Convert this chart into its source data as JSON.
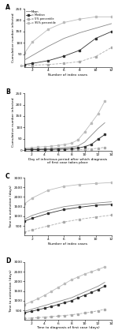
{
  "panel_A": {
    "xlabel": "Number of index cases",
    "ylabel": "Cumulative number infected",
    "xlim": [
      1,
      12
    ],
    "ylim": [
      -5,
      250
    ],
    "xticks": [
      2,
      4,
      6,
      8,
      10,
      12
    ],
    "yticks": [
      0,
      50,
      100,
      150,
      200,
      250
    ],
    "x": [
      1,
      2,
      4,
      6,
      8,
      10,
      12
    ],
    "mean": [
      25,
      45,
      85,
      120,
      145,
      165,
      185
    ],
    "median": [
      5,
      10,
      22,
      42,
      68,
      120,
      150
    ],
    "p5": [
      1,
      2,
      5,
      10,
      18,
      40,
      80
    ],
    "p95": [
      55,
      105,
      160,
      190,
      205,
      215,
      215
    ]
  },
  "panel_B": {
    "xlabel": "Day of infectious period after which diagnosis\nof first case takes place",
    "ylabel": "Cumulative number infected",
    "xlim": [
      1,
      14
    ],
    "ylim": [
      -5,
      250
    ],
    "xticks": [
      2,
      4,
      6,
      8,
      10,
      12,
      14
    ],
    "yticks": [
      0,
      50,
      100,
      150,
      200,
      250
    ],
    "x": [
      1,
      2,
      3,
      4,
      5,
      6,
      7,
      8,
      9,
      10,
      11,
      12,
      13
    ],
    "mean": [
      4,
      5,
      5,
      6,
      7,
      9,
      11,
      14,
      18,
      35,
      65,
      95,
      120
    ],
    "median": [
      2,
      2,
      2,
      3,
      3,
      4,
      5,
      7,
      9,
      15,
      25,
      48,
      68
    ],
    "p5": [
      1,
      1,
      1,
      1,
      1,
      1,
      2,
      2,
      2,
      3,
      5,
      8,
      12
    ],
    "p95": [
      8,
      10,
      13,
      15,
      17,
      20,
      25,
      30,
      45,
      80,
      120,
      160,
      215
    ]
  },
  "panel_C": {
    "xlabel": "Number of index cases",
    "ylabel": "Time to extinction (days)",
    "xlim": [
      1,
      12
    ],
    "ylim": [
      0,
      3000
    ],
    "xticks": [
      2,
      4,
      6,
      8,
      10,
      12
    ],
    "yticks": [
      500,
      1000,
      1500,
      2000,
      2500,
      3000
    ],
    "x": [
      1,
      2,
      4,
      6,
      8,
      10,
      12
    ],
    "mean": [
      850,
      1050,
      1300,
      1500,
      1600,
      1680,
      1750
    ],
    "median": [
      750,
      900,
      1150,
      1350,
      1470,
      1570,
      1620
    ],
    "p5": [
      180,
      300,
      500,
      700,
      850,
      960,
      1060
    ],
    "p95": [
      1650,
      1950,
      2350,
      2550,
      2650,
      2700,
      2750
    ]
  },
  "panel_D": {
    "xlabel": "Time to diagnosis of first case (days)",
    "ylabel": "Time to extinction (days)",
    "xlim": [
      1,
      14
    ],
    "ylim": [
      0,
      3000
    ],
    "xticks": [
      2,
      4,
      6,
      8,
      10,
      12,
      14
    ],
    "yticks": [
      500,
      1000,
      1500,
      2000,
      2500,
      3000
    ],
    "x": [
      1,
      2,
      3,
      4,
      5,
      6,
      7,
      8,
      9,
      10,
      11,
      12,
      13
    ],
    "mean": [
      450,
      550,
      650,
      750,
      850,
      950,
      1050,
      1150,
      1300,
      1450,
      1600,
      1750,
      1950
    ],
    "median": [
      380,
      450,
      530,
      610,
      700,
      800,
      900,
      1000,
      1150,
      1290,
      1430,
      1580,
      1750
    ],
    "p5": [
      80,
      100,
      125,
      150,
      175,
      200,
      235,
      270,
      315,
      360,
      415,
      480,
      560
    ],
    "p95": [
      800,
      950,
      1100,
      1280,
      1480,
      1680,
      1880,
      2080,
      2230,
      2380,
      2500,
      2620,
      2750
    ]
  },
  "legend": {
    "mean_label": "Mean",
    "median_label": "= Median",
    "p5_label": "= 5% percentile",
    "p95_label": "= 95% percentile"
  },
  "style": {
    "mean_color": "#888888",
    "median_color": "#333333",
    "p5_color": "#aaaaaa",
    "p95_color": "#bbbbbb",
    "line_width": 0.6,
    "marker": "s",
    "marker_size": 1.5,
    "label_font_size": 3.2,
    "tick_font_size": 3.2,
    "panel_label_size": 5.5,
    "legend_font_size": 2.5
  }
}
